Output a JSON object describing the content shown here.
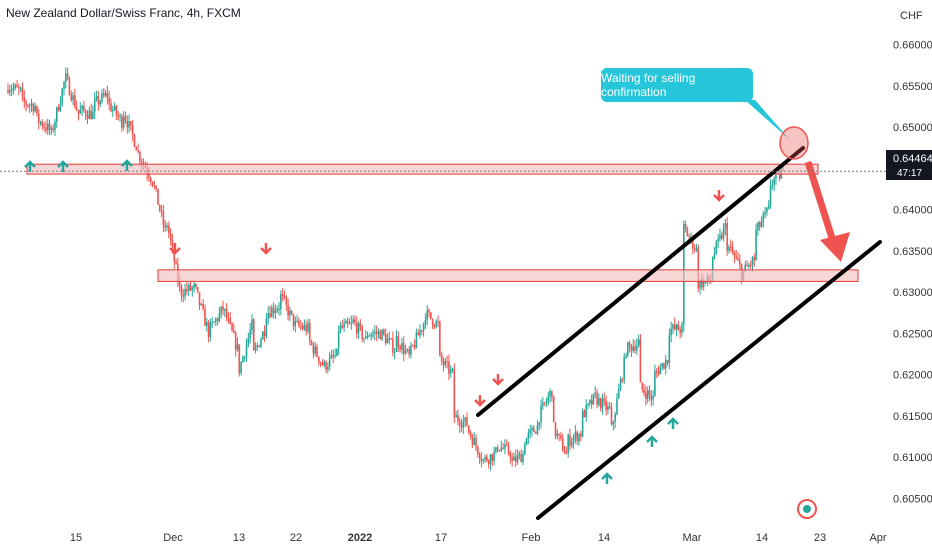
{
  "header": {
    "title": "New Zealand Dollar/Swiss Franc, 4h, FXCM",
    "currency": "CHF"
  },
  "callout": {
    "text": "Waiting for selling confirmation"
  },
  "price_badge": {
    "price": "0.64464",
    "countdown": "47:17"
  },
  "colors": {
    "up": "#26a69a",
    "down": "#ef5350",
    "zone_fill": "#f2c0c0",
    "zone_stroke": "#e53935",
    "callout": "#26c6da",
    "channel": "#000000",
    "price_badge": "#131722"
  },
  "chart_data": {
    "type": "candlestick",
    "symbol": "NZDCHF",
    "interval": "4h",
    "x_tick_labels": [
      "15",
      "Dec",
      "13",
      "22",
      "2022",
      "17",
      "Feb",
      "14",
      "Mar",
      "14",
      "23",
      "Apr"
    ],
    "y_tick_labels": [
      "0.66000",
      "0.65500",
      "0.65000",
      "0.64500",
      "0.64000",
      "0.63500",
      "0.63000",
      "0.62500",
      "0.62000",
      "0.61500",
      "0.61000",
      "0.60500"
    ],
    "ylim": [
      0.603,
      0.662
    ],
    "current_price": 0.64464,
    "price_path": [
      [
        0.6545,
        0.655
      ],
      [
        0.6542,
        0.653
      ],
      [
        0.6525,
        0.651
      ],
      [
        0.6495,
        0.649
      ],
      [
        0.656,
        0.656
      ],
      [
        0.6512,
        0.652
      ],
      [
        0.6515,
        0.6528
      ],
      [
        0.654,
        0.6528
      ],
      [
        0.6505,
        0.652
      ],
      [
        0.6475,
        0.647
      ],
      [
        0.6438,
        0.644
      ],
      [
        0.637,
        0.639
      ],
      [
        0.63,
        0.63
      ],
      [
        0.6305,
        0.6305
      ],
      [
        0.625,
        0.6253
      ],
      [
        0.628,
        0.628
      ],
      [
        0.623,
        0.62
      ],
      [
        0.626,
        0.622
      ],
      [
        0.626,
        0.6275
      ],
      [
        0.6285,
        0.6295
      ],
      [
        0.626,
        0.626
      ],
      [
        0.6255,
        0.624
      ],
      [
        0.621,
        0.621
      ],
      [
        0.6225,
        0.6255
      ],
      [
        0.626,
        0.6265
      ],
      [
        0.624,
        0.625
      ],
      [
        0.625,
        0.625
      ],
      [
        0.623,
        0.6245
      ],
      [
        0.622,
        0.6225
      ],
      [
        0.6265,
        0.6275
      ],
      [
        0.626,
        0.622
      ],
      [
        0.62,
        0.615
      ],
      [
        0.614,
        0.6135
      ],
      [
        0.61,
        0.6095
      ],
      [
        0.6105,
        0.6115
      ],
      [
        0.6105,
        0.6092
      ],
      [
        0.6105,
        0.612
      ],
      [
        0.614,
        0.615
      ],
      [
        0.6185,
        0.6135
      ],
      [
        0.61,
        0.612
      ],
      [
        0.613,
        0.615
      ],
      [
        0.6175,
        0.617
      ],
      [
        0.6155,
        0.613
      ],
      [
        0.622,
        0.623
      ],
      [
        0.624,
        0.6185
      ],
      [
        0.617,
        0.62
      ],
      [
        0.622,
        0.6255
      ],
      [
        0.6255,
        0.638
      ],
      [
        0.635,
        0.631
      ],
      [
        0.6315,
        0.634
      ],
      [
        0.638,
        0.636
      ],
      [
        0.633,
        0.632
      ],
      [
        0.634,
        0.637
      ],
      [
        0.64,
        0.643
      ],
      [
        0.6446,
        0.6446
      ]
    ],
    "zones": [
      {
        "name": "upper-resistance",
        "low": 0.6443,
        "high": 0.6455
      },
      {
        "name": "lower-support",
        "low": 0.6313,
        "high": 0.6327
      }
    ],
    "channel_lines": [
      {
        "name": "upper",
        "from": [
          "2022-01-22",
          0.6153
        ],
        "to": [
          "2022-03-20",
          0.6455
        ]
      },
      {
        "name": "lower",
        "from": [
          "2022-01-31",
          0.604
        ],
        "to": [
          "2022-03-29",
          0.635
        ]
      }
    ],
    "markers": {
      "down": [
        [
          0.634,
          "Dec 1"
        ],
        [
          0.634,
          "Dec 16"
        ],
        [
          0.6158,
          "Jan 24"
        ],
        [
          0.618,
          "Jan 27"
        ],
        [
          0.642,
          "Mar 6"
        ]
      ],
      "up": [
        [
          0.6437,
          "Nov 4"
        ],
        [
          0.6437,
          "Nov 9"
        ],
        [
          0.6437,
          "Nov 22"
        ],
        [
          0.609,
          "Feb 14"
        ],
        [
          0.613,
          "Feb 21"
        ],
        [
          0.6145,
          "Feb 25"
        ]
      ]
    }
  }
}
